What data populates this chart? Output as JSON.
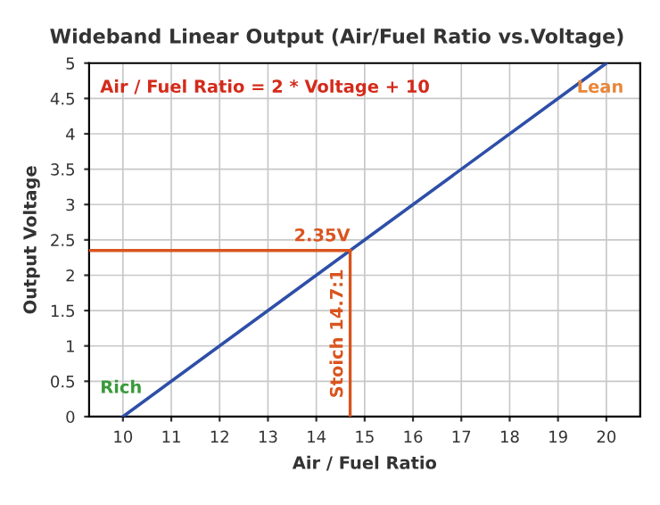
{
  "chart_data": {
    "type": "line",
    "title": "Wideband Linear Output (Air/Fuel Ratio vs.Voltage)",
    "xlabel": "Air / Fuel Ratio",
    "ylabel": "Output Voltage",
    "x": [
      10,
      20
    ],
    "series": [
      {
        "color": "#2e4fa8",
        "values": [
          0,
          5
        ]
      }
    ],
    "xlim": [
      9.3,
      20.7
    ],
    "xticks": [
      10,
      11,
      12,
      13,
      14,
      15,
      16,
      17,
      18,
      19,
      20
    ],
    "ylim": [
      0,
      5
    ],
    "yticks": [
      0,
      0.5,
      1,
      1.5,
      2,
      2.5,
      3,
      3.5,
      4,
      4.5,
      5
    ],
    "grid": true,
    "marker": "none",
    "line_style": "solid",
    "ref_lines": [
      {
        "axis": "y",
        "value": 2.35,
        "label": "2.35V",
        "color": "#d9541e"
      },
      {
        "axis": "x",
        "value": 14.7,
        "label": "Stoich 14.7:1",
        "color": "#d9541e"
      }
    ],
    "annotations": [
      "Air / Fuel Ratio = 2 * Voltage + 10",
      "Lean",
      "Rich"
    ]
  }
}
